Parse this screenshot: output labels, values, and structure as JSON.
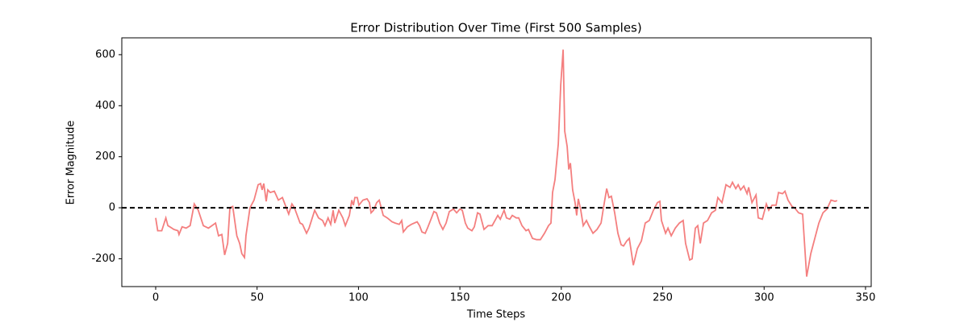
{
  "chart_data": {
    "type": "line",
    "title": "Error Distribution Over Time (First 500 Samples)",
    "x_label": "Time Steps",
    "y_label": "Error Magnitude",
    "xlim": [
      -16.7,
      352.8
    ],
    "ylim": [
      -309,
      666
    ],
    "xticks": [
      0,
      50,
      100,
      150,
      200,
      250,
      300,
      350
    ],
    "yticks": [
      -200,
      0,
      200,
      400,
      600
    ],
    "reference_line": {
      "value": 0,
      "color": "#000000"
    },
    "series": [
      {
        "color": "#f47f7f",
        "x": [
          0,
          1,
          3,
          5,
          6,
          7,
          9,
          11,
          11.5,
          13,
          15,
          17,
          19,
          21,
          23.5,
          26,
          29.5,
          31,
          32.6,
          34,
          35.5,
          36.6,
          38,
          40,
          41.4,
          42.5,
          43.8,
          44.5,
          46.5,
          48.5,
          50.5,
          51.7,
          52.5,
          53.3,
          54.5,
          55.3,
          56.5,
          58.5,
          60.5,
          62.5,
          64.4,
          65.6,
          67.2,
          68.4,
          71.2,
          72.4,
          74.4,
          75.6,
          78.4,
          80.3,
          82.3,
          83.5,
          85,
          86.3,
          87.5,
          88.3,
          89.5,
          90.3,
          92.3,
          93.5,
          95.5,
          96.7,
          97.5,
          98.2,
          99.4,
          100.2,
          102.2,
          104.2,
          105.4,
          106.2,
          107.4,
          109,
          110.2,
          112.2,
          114.2,
          116.5,
          118.1,
          120.1,
          121.3,
          122.1,
          124.1,
          126.1,
          128.9,
          130.1,
          131.3,
          132.9,
          134,
          136,
          137.2,
          138.4,
          140,
          141.6,
          143.2,
          144.8,
          146.8,
          148.4,
          150,
          151.2,
          152.7,
          153.9,
          155.9,
          157.1,
          158.7,
          159.9,
          161.9,
          163.9,
          165.9,
          168.7,
          169.9,
          171.8,
          173,
          174.6,
          175.8,
          177.8,
          179,
          180.6,
          182.6,
          183.8,
          185.8,
          187.8,
          189.7,
          191.7,
          193.7,
          194.9,
          195.7,
          196.9,
          198.5,
          199.7,
          200.9,
          201.7,
          202.9,
          203.7,
          204.5,
          205.6,
          206.8,
          207.6,
          208.4,
          209.6,
          210.8,
          212.4,
          213.6,
          215.6,
          217.6,
          219.6,
          220.8,
          222.4,
          223.5,
          224.7,
          226.3,
          227.9,
          229.5,
          230.7,
          232.3,
          233.5,
          235.5,
          237.5,
          239.5,
          241.4,
          243.4,
          245.4,
          247.4,
          248.6,
          249.4,
          251.4,
          252.6,
          254.2,
          256.2,
          258.2,
          260.1,
          261.3,
          263.3,
          264.5,
          266.1,
          267.3,
          268.5,
          270.1,
          272.1,
          274.1,
          276,
          277.2,
          279.2,
          281.2,
          283.2,
          284.4,
          286,
          287.2,
          288.4,
          290,
          291.6,
          292.4,
          294,
          296,
          297.1,
          299.1,
          301.1,
          302.3,
          303.9,
          305.9,
          307.1,
          309.1,
          310.3,
          311.8,
          313.8,
          315,
          317,
          319,
          321,
          323,
          325,
          327,
          329,
          331,
          333,
          335,
          336
        ],
        "values": [
          -40,
          -90,
          -90,
          -40,
          -70,
          -75,
          -85,
          -90,
          -105,
          -75,
          -80,
          -70,
          15,
          -10,
          -70,
          -80,
          -60,
          -110,
          -105,
          -185,
          -140,
          0,
          5,
          -110,
          -140,
          -180,
          -195,
          -110,
          0,
          30,
          90,
          95,
          70,
          95,
          25,
          70,
          60,
          65,
          30,
          40,
          0,
          -25,
          15,
          0,
          -60,
          -65,
          -100,
          -80,
          -10,
          -40,
          -50,
          -70,
          -40,
          -65,
          -10,
          -60,
          -30,
          -10,
          -40,
          -70,
          -30,
          30,
          10,
          40,
          40,
          10,
          30,
          35,
          20,
          -20,
          -10,
          20,
          30,
          -30,
          -40,
          -55,
          -60,
          -65,
          -50,
          -95,
          -75,
          -65,
          -55,
          -70,
          -95,
          -100,
          -80,
          -40,
          -15,
          -20,
          -60,
          -85,
          -60,
          -15,
          -5,
          -20,
          -5,
          -10,
          -60,
          -80,
          -90,
          -75,
          -20,
          -25,
          -85,
          -70,
          -70,
          -30,
          -45,
          -10,
          -40,
          -45,
          -30,
          -40,
          -40,
          -70,
          -90,
          -85,
          -120,
          -125,
          -125,
          -100,
          -70,
          -60,
          60,
          110,
          250,
          480,
          620,
          300,
          240,
          150,
          175,
          70,
          20,
          -30,
          35,
          -10,
          -70,
          -50,
          -70,
          -100,
          -85,
          -60,
          0,
          75,
          40,
          45,
          -20,
          -100,
          -145,
          -150,
          -130,
          -120,
          -225,
          -160,
          -130,
          -60,
          -50,
          -10,
          20,
          25,
          -50,
          -100,
          -80,
          -110,
          -80,
          -60,
          -50,
          -140,
          -205,
          -200,
          -80,
          -70,
          -140,
          -60,
          -50,
          -20,
          -10,
          40,
          20,
          90,
          80,
          100,
          75,
          90,
          70,
          85,
          55,
          80,
          20,
          50,
          -40,
          -45,
          15,
          -10,
          10,
          10,
          60,
          55,
          65,
          30,
          5,
          0,
          -20,
          -25,
          -270,
          -180,
          -120,
          -60,
          -20,
          -5,
          30,
          25,
          28
        ]
      }
    ]
  }
}
